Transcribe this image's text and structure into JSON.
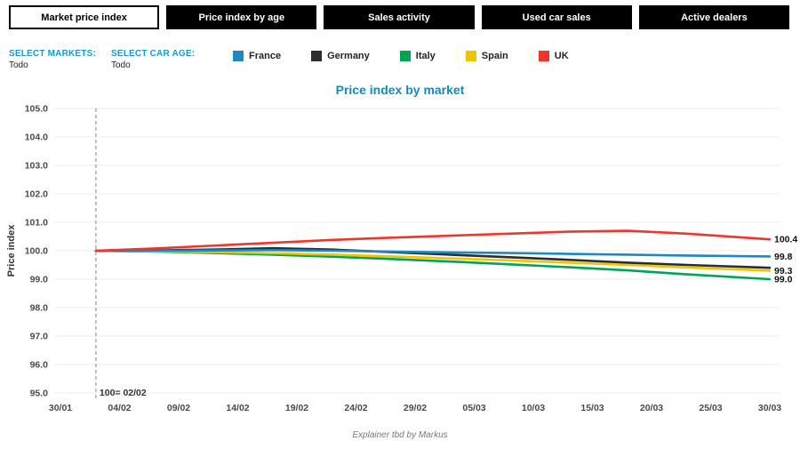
{
  "tabs": [
    {
      "label": "Market price index",
      "active": true
    },
    {
      "label": "Price index by age",
      "active": false
    },
    {
      "label": "Sales activity",
      "active": false
    },
    {
      "label": "Used car sales",
      "active": false
    },
    {
      "label": "Active dealers",
      "active": false
    }
  ],
  "filters": {
    "markets": {
      "label": "SELECT MARKETS:",
      "value": "Todo"
    },
    "car_age": {
      "label": "SELECT CAR AGE:",
      "value": "Todo"
    }
  },
  "legend": [
    {
      "label": "France",
      "color": "#1e88c1"
    },
    {
      "label": "Germany",
      "color": "#2a2e31"
    },
    {
      "label": "Italy",
      "color": "#00a455"
    },
    {
      "label": "Spain",
      "color": "#f0c400"
    },
    {
      "label": "UK",
      "color": "#f0352b"
    }
  ],
  "chart_data": {
    "type": "line",
    "title": "Price index by market",
    "ylabel": "Price index",
    "ylim": [
      95.0,
      105.0
    ],
    "y_tick_labels": [
      "105.0",
      "104.0",
      "103.0",
      "102.0",
      "101.0",
      "100.0",
      "99.0",
      "98.0",
      "97.0",
      "96.0",
      "95.0"
    ],
    "grid": "horizontal",
    "legend_position": "top",
    "x_axis": {
      "tick_labels": [
        "30/01",
        "04/02",
        "09/02",
        "14/02",
        "19/02",
        "24/02",
        "29/02",
        "05/03",
        "10/03",
        "15/03",
        "20/03",
        "25/03",
        "30/03"
      ],
      "tick_interval_days": 5,
      "total_days": 60
    },
    "annotation": {
      "label": "100= 02/02",
      "at_day": 3,
      "style": "dashed-vertical-line"
    },
    "series": [
      {
        "name": "Italy",
        "color": "#00a455",
        "end_label": "99.0",
        "days": [
          3,
          8,
          13,
          18,
          23,
          28,
          33,
          38,
          43,
          48,
          53,
          60
        ],
        "values": [
          100.0,
          99.97,
          99.92,
          99.86,
          99.79,
          99.71,
          99.62,
          99.52,
          99.42,
          99.31,
          99.17,
          99.0
        ]
      },
      {
        "name": "Spain",
        "color": "#f0c400",
        "end_label": "99.3",
        "days": [
          3,
          8,
          13,
          18,
          23,
          28,
          33,
          38,
          43,
          48,
          53,
          60
        ],
        "values": [
          100.0,
          99.98,
          99.95,
          99.91,
          99.86,
          99.8,
          99.73,
          99.66,
          99.58,
          99.5,
          99.41,
          99.3
        ]
      },
      {
        "name": "Germany",
        "color": "#2a2e31",
        "end_label": null,
        "days": [
          3,
          8,
          13,
          18,
          23,
          28,
          33,
          38,
          43,
          48,
          53,
          60
        ],
        "values": [
          100.0,
          100.01,
          100.04,
          100.09,
          100.04,
          99.95,
          99.86,
          99.77,
          99.68,
          99.58,
          99.5,
          99.4
        ]
      },
      {
        "name": "France",
        "color": "#1e88c1",
        "end_label": "99.8",
        "days": [
          3,
          8,
          13,
          18,
          23,
          28,
          33,
          38,
          43,
          48,
          53,
          60
        ],
        "values": [
          100.0,
          100.0,
          100.01,
          100.02,
          100.0,
          99.97,
          99.94,
          99.92,
          99.89,
          99.86,
          99.83,
          99.8
        ]
      },
      {
        "name": "UK",
        "color": "#f0352b",
        "end_label": "100.4",
        "days": [
          3,
          8,
          13,
          18,
          23,
          28,
          33,
          38,
          43,
          48,
          53,
          60
        ],
        "values": [
          100.0,
          100.08,
          100.18,
          100.28,
          100.38,
          100.46,
          100.53,
          100.6,
          100.67,
          100.7,
          100.6,
          100.4
        ]
      }
    ]
  },
  "footer": {
    "note": "Explainer tbd by Markus"
  }
}
